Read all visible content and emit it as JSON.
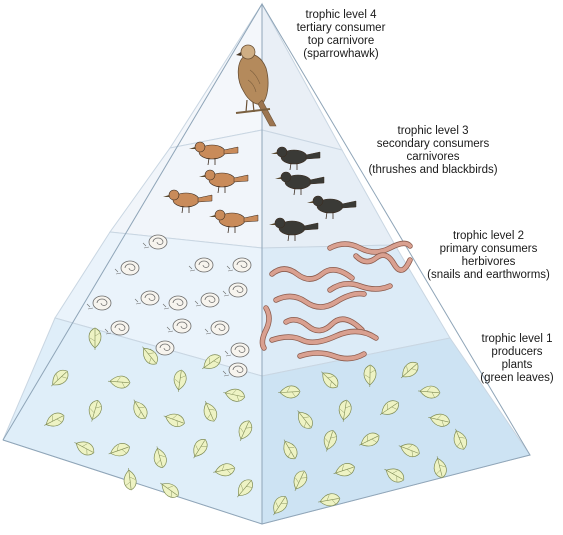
{
  "levels": [
    {
      "lines": [
        "trophic level 4",
        "tertiary consumer",
        "top carnivore",
        "(sparrowhawk)"
      ],
      "organism": "sparrowhawk",
      "face_colors": [
        "#f4f7fb",
        "#e9eff6"
      ]
    },
    {
      "lines": [
        "trophic level 3",
        "secondary consumers",
        "carnivores",
        "(thrushes and blackbirds)"
      ],
      "organism": "thrushes-and-blackbirds",
      "face_colors": [
        "#f1f5fa",
        "#e6eef6"
      ]
    },
    {
      "lines": [
        "trophic level 2",
        "primary consumers",
        "herbivores",
        "(snails and earthworms)"
      ],
      "organism": "snails-and-earthworms",
      "face_colors": [
        "#eaf3fb",
        "#dcebf7"
      ]
    },
    {
      "lines": [
        "trophic level 1",
        "producers",
        "plants",
        "(green leaves)"
      ],
      "organism": "green-leaves",
      "face_colors": [
        "#dfeef9",
        "#cde3f3"
      ]
    }
  ],
  "colors": {
    "thrush": "#c98b5a",
    "blackbird": "#3a3a36",
    "snail_shell": "#f7f4ee",
    "worm": "#d9a090",
    "leaf": "#eef3c4",
    "hawk": "#b48a5c"
  }
}
